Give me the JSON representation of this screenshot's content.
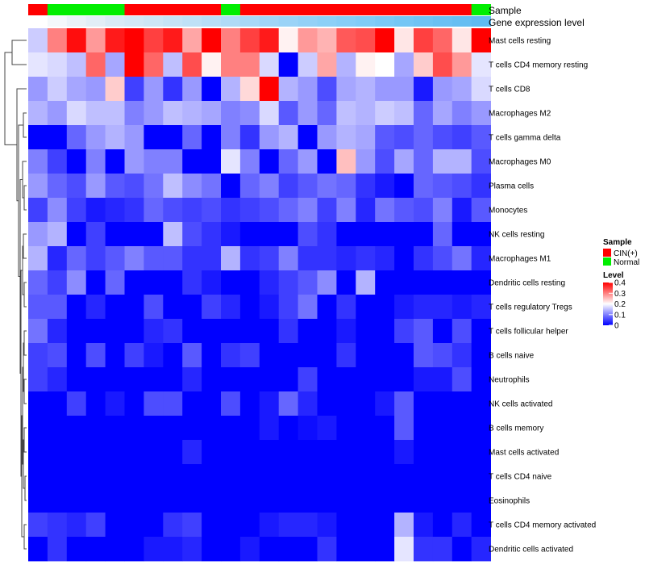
{
  "chart_data": {
    "type": "heatmap",
    "annotation_labels": {
      "sample": "Sample",
      "expression": "Gene expression level"
    },
    "legend": {
      "sample_title": "Sample",
      "sample_entries": [
        {
          "label": "CIN(+)",
          "color": "#ff0000"
        },
        {
          "label": "Normal",
          "color": "#00ee00"
        }
      ],
      "level_title": "Level",
      "level_ticks": [
        "0.4",
        "0.3",
        "0.2",
        "0.1",
        "0"
      ],
      "scale_colors": {
        "low": "#0000ff",
        "mid": "#ffffff",
        "high": "#ff0000"
      },
      "range": [
        0,
        0.4
      ]
    },
    "columns": [
      {
        "sample": "CIN(+)",
        "expression": "#ffffff"
      },
      {
        "sample": "Normal",
        "expression": "#f4f8fb"
      },
      {
        "sample": "Normal",
        "expression": "#eaf2f8"
      },
      {
        "sample": "Normal",
        "expression": "#e2eef7"
      },
      {
        "sample": "Normal",
        "expression": "#d9eaf6"
      },
      {
        "sample": "CIN(+)",
        "expression": "#d3e8f6"
      },
      {
        "sample": "CIN(+)",
        "expression": "#cde6f6"
      },
      {
        "sample": "CIN(+)",
        "expression": "#c6e3f6"
      },
      {
        "sample": "CIN(+)",
        "expression": "#bfe1f7"
      },
      {
        "sample": "CIN(+)",
        "expression": "#b8def7"
      },
      {
        "sample": "Normal",
        "expression": "#b0dbf7"
      },
      {
        "sample": "CIN(+)",
        "expression": "#a8d8f7"
      },
      {
        "sample": "CIN(+)",
        "expression": "#a1d5f7"
      },
      {
        "sample": "CIN(+)",
        "expression": "#9ad3f7"
      },
      {
        "sample": "CIN(+)",
        "expression": "#93d1f7"
      },
      {
        "sample": "CIN(+)",
        "expression": "#8cd0f7"
      },
      {
        "sample": "CIN(+)",
        "expression": "#86cef7"
      },
      {
        "sample": "CIN(+)",
        "expression": "#80ccf7"
      },
      {
        "sample": "CIN(+)",
        "expression": "#7ac9f6"
      },
      {
        "sample": "CIN(+)",
        "expression": "#74c6f5"
      },
      {
        "sample": "CIN(+)",
        "expression": "#6fc3f4"
      },
      {
        "sample": "CIN(+)",
        "expression": "#6ac0f3"
      },
      {
        "sample": "CIN(+)",
        "expression": "#65bef2"
      },
      {
        "sample": "Normal",
        "expression": "#60bbf1"
      }
    ],
    "rows": [
      {
        "label": "Mast cells resting",
        "values": [
          0.16,
          0.3,
          0.39,
          0.28,
          0.38,
          0.4,
          0.35,
          0.38,
          0.27,
          0.4,
          0.3,
          0.35,
          0.38,
          0.21,
          0.28,
          0.26,
          0.33,
          0.34,
          0.4,
          0.22,
          0.35,
          0.32,
          0.22,
          0.4
        ]
      },
      {
        "label": "T cells CD4 memory resting",
        "values": [
          0.18,
          0.17,
          0.15,
          0.32,
          0.13,
          0.4,
          0.32,
          0.15,
          0.34,
          0.21,
          0.3,
          0.3,
          0.17,
          0.0,
          0.16,
          0.27,
          0.14,
          0.21,
          0.2,
          0.13,
          0.24,
          0.34,
          0.28,
          0.18
        ]
      },
      {
        "label": "T cells CD8",
        "values": [
          0.12,
          0.16,
          0.13,
          0.12,
          0.24,
          0.05,
          0.12,
          0.04,
          0.12,
          0.0,
          0.14,
          0.23,
          0.4,
          0.14,
          0.12,
          0.06,
          0.13,
          0.14,
          0.12,
          0.12,
          0.02,
          0.12,
          0.13,
          0.17
        ]
      },
      {
        "label": "Macrophages M2",
        "values": [
          0.14,
          0.12,
          0.17,
          0.15,
          0.15,
          0.1,
          0.12,
          0.15,
          0.14,
          0.13,
          0.1,
          0.11,
          0.17,
          0.07,
          0.12,
          0.08,
          0.15,
          0.14,
          0.16,
          0.15,
          0.08,
          0.13,
          0.1,
          0.12
        ]
      },
      {
        "label": "T cells gamma delta",
        "values": [
          0.0,
          0.0,
          0.08,
          0.12,
          0.14,
          0.12,
          0.0,
          0.0,
          0.08,
          0.0,
          0.1,
          0.04,
          0.12,
          0.14,
          0.0,
          0.12,
          0.14,
          0.13,
          0.07,
          0.06,
          0.08,
          0.06,
          0.05,
          0.07
        ]
      },
      {
        "label": "Macrophages M0",
        "values": [
          0.1,
          0.05,
          0.0,
          0.1,
          0.0,
          0.12,
          0.1,
          0.1,
          0.0,
          0.0,
          0.18,
          0.1,
          0.0,
          0.08,
          0.12,
          0.0,
          0.25,
          0.12,
          0.06,
          0.13,
          0.08,
          0.14,
          0.14,
          0.06
        ]
      },
      {
        "label": "Plasma cells",
        "values": [
          0.12,
          0.08,
          0.06,
          0.12,
          0.07,
          0.06,
          0.09,
          0.15,
          0.11,
          0.09,
          0.0,
          0.08,
          0.1,
          0.05,
          0.07,
          0.09,
          0.08,
          0.04,
          0.02,
          0.0,
          0.08,
          0.07,
          0.06,
          0.04
        ]
      },
      {
        "label": "Monocytes",
        "values": [
          0.05,
          0.11,
          0.05,
          0.02,
          0.03,
          0.04,
          0.08,
          0.06,
          0.05,
          0.06,
          0.04,
          0.05,
          0.06,
          0.08,
          0.1,
          0.05,
          0.1,
          0.03,
          0.09,
          0.07,
          0.06,
          0.1,
          0.02,
          0.07
        ]
      },
      {
        "label": "NK cells resting",
        "values": [
          0.12,
          0.14,
          0.0,
          0.05,
          0.0,
          0.0,
          0.0,
          0.15,
          0.06,
          0.04,
          0.02,
          0.0,
          0.0,
          0.0,
          0.06,
          0.04,
          0.0,
          0.0,
          0.0,
          0.0,
          0.0,
          0.08,
          0.0,
          0.0
        ]
      },
      {
        "label": "Macrophages M1",
        "values": [
          0.14,
          0.03,
          0.08,
          0.05,
          0.07,
          0.1,
          0.07,
          0.07,
          0.04,
          0.04,
          0.14,
          0.04,
          0.05,
          0.1,
          0.04,
          0.04,
          0.03,
          0.04,
          0.03,
          0.0,
          0.04,
          0.06,
          0.09,
          0.03
        ]
      },
      {
        "label": "Dendritic cells resting",
        "values": [
          0.08,
          0.05,
          0.11,
          0.0,
          0.08,
          0.0,
          0.0,
          0.0,
          0.04,
          0.02,
          0.0,
          0.0,
          0.03,
          0.05,
          0.07,
          0.11,
          0.0,
          0.14,
          0.0,
          0.0,
          0.0,
          0.0,
          0.0,
          0.0
        ]
      },
      {
        "label": "T cells regulatory  Tregs",
        "values": [
          0.07,
          0.07,
          0.0,
          0.03,
          0.0,
          0.0,
          0.06,
          0.0,
          0.0,
          0.05,
          0.03,
          0.0,
          0.02,
          0.05,
          0.09,
          0.0,
          0.04,
          0.0,
          0.0,
          0.02,
          0.03,
          0.03,
          0.02,
          0.03
        ]
      },
      {
        "label": "T cells follicular helper",
        "values": [
          0.09,
          0.03,
          0.0,
          0.0,
          0.0,
          0.0,
          0.03,
          0.04,
          0.0,
          0.0,
          0.0,
          0.0,
          0.0,
          0.04,
          0.0,
          0.0,
          0.02,
          0.0,
          0.0,
          0.05,
          0.07,
          0.0,
          0.06,
          0.0
        ]
      },
      {
        "label": "B cells naive",
        "values": [
          0.05,
          0.06,
          0.0,
          0.06,
          0.0,
          0.05,
          0.02,
          0.0,
          0.07,
          0.0,
          0.04,
          0.05,
          0.0,
          0.0,
          0.0,
          0.0,
          0.04,
          0.0,
          0.0,
          0.0,
          0.07,
          0.06,
          0.04,
          0.0
        ]
      },
      {
        "label": "Neutrophils",
        "values": [
          0.05,
          0.03,
          0.0,
          0.0,
          0.0,
          0.0,
          0.0,
          0.0,
          0.03,
          0.0,
          0.0,
          0.0,
          0.0,
          0.0,
          0.05,
          0.0,
          0.0,
          0.0,
          0.0,
          0.0,
          0.02,
          0.02,
          0.06,
          0.0
        ]
      },
      {
        "label": "NK cells activated",
        "values": [
          0.0,
          0.0,
          0.05,
          0.0,
          0.02,
          0.0,
          0.06,
          0.06,
          0.0,
          0.0,
          0.06,
          0.0,
          0.02,
          0.08,
          0.03,
          0.0,
          0.0,
          0.0,
          0.02,
          0.07,
          0.0,
          0.0,
          0.0,
          0.0
        ]
      },
      {
        "label": "B cells memory",
        "values": [
          0.0,
          0.0,
          0.0,
          0.0,
          0.0,
          0.0,
          0.0,
          0.0,
          0.0,
          0.0,
          0.0,
          0.0,
          0.02,
          0.0,
          0.01,
          0.02,
          0.0,
          0.0,
          0.0,
          0.07,
          0.0,
          0.0,
          0.0,
          0.0
        ]
      },
      {
        "label": "Mast cells activated",
        "values": [
          0.0,
          0.0,
          0.0,
          0.0,
          0.0,
          0.0,
          0.0,
          0.0,
          0.03,
          0.0,
          0.0,
          0.0,
          0.0,
          0.0,
          0.0,
          0.0,
          0.0,
          0.0,
          0.0,
          0.02,
          0.0,
          0.0,
          0.0,
          0.0
        ]
      },
      {
        "label": "T cells CD4 naive",
        "values": [
          0.0,
          0.0,
          0.0,
          0.0,
          0.0,
          0.0,
          0.0,
          0.0,
          0.0,
          0.0,
          0.0,
          0.0,
          0.0,
          0.0,
          0.0,
          0.0,
          0.0,
          0.0,
          0.0,
          0.0,
          0.0,
          0.0,
          0.0,
          0.0
        ]
      },
      {
        "label": "Eosinophils",
        "values": [
          0.0,
          0.0,
          0.0,
          0.0,
          0.0,
          0.0,
          0.0,
          0.0,
          0.0,
          0.0,
          0.0,
          0.0,
          0.0,
          0.0,
          0.0,
          0.0,
          0.0,
          0.0,
          0.0,
          0.0,
          0.0,
          0.0,
          0.0,
          0.0
        ]
      },
      {
        "label": "T cells CD4 memory activated",
        "values": [
          0.05,
          0.04,
          0.03,
          0.05,
          0.0,
          0.0,
          0.0,
          0.04,
          0.05,
          0.0,
          0.0,
          0.0,
          0.02,
          0.03,
          0.03,
          0.02,
          0.0,
          0.0,
          0.0,
          0.14,
          0.02,
          0.0,
          0.03,
          0.0
        ]
      },
      {
        "label": "Dendritic cells activated",
        "values": [
          0.0,
          0.04,
          0.0,
          0.0,
          0.0,
          0.0,
          0.02,
          0.02,
          0.03,
          0.0,
          0.0,
          0.02,
          0.0,
          0.0,
          0.0,
          0.04,
          0.0,
          0.0,
          0.0,
          0.18,
          0.04,
          0.04,
          0.0,
          0.03
        ]
      }
    ]
  }
}
